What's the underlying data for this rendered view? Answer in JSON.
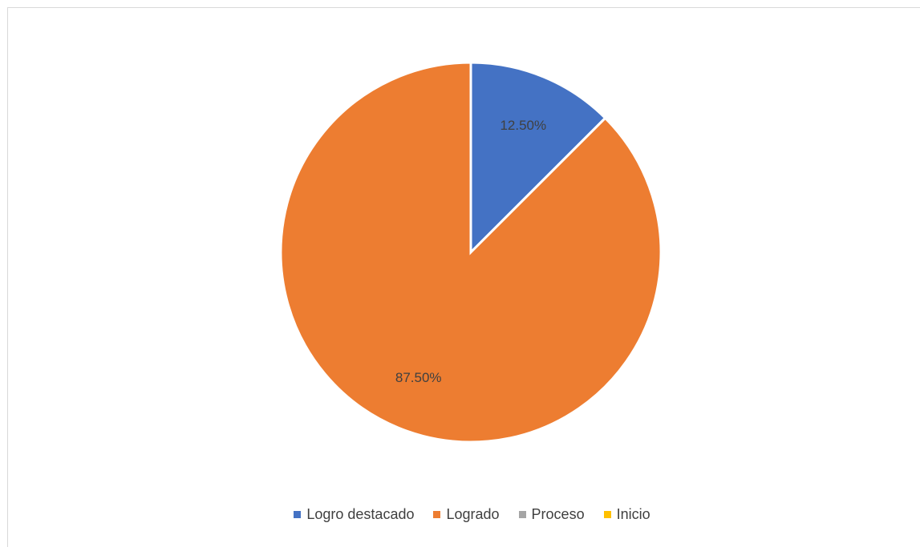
{
  "chart_data": {
    "type": "pie",
    "categories": [
      "Logro destacado",
      "Logrado",
      "Proceso",
      "Inicio"
    ],
    "values": [
      12.5,
      87.5,
      0,
      0
    ],
    "data_labels": [
      "12.50%",
      "87.50%",
      "",
      ""
    ],
    "colors": [
      "#4472C4",
      "#ED7D31",
      "#A5A5A5",
      "#FFC000"
    ],
    "legend_position": "bottom",
    "title": ""
  }
}
